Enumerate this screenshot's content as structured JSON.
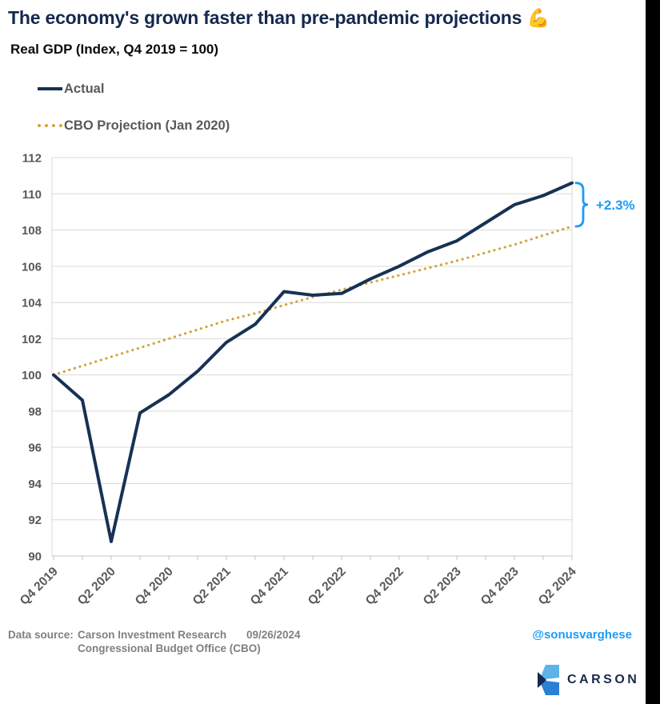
{
  "title": {
    "text": "The economy's grown faster than pre-pandemic projections",
    "emoji": "💪"
  },
  "subtitle": "Real GDP (Index, Q4 2019 = 100)",
  "legend": [
    {
      "label": "Actual",
      "style": "solid",
      "color": "#163254"
    },
    {
      "label": "CBO Projection (Jan 2020)",
      "style": "dotted",
      "color": "#D2A43F"
    }
  ],
  "annotation": {
    "label": "+2.3%",
    "color": "#1E9BF5"
  },
  "chart_data": {
    "type": "line",
    "x": [
      "Q4 2019",
      "Q1 2020",
      "Q2 2020",
      "Q3 2020",
      "Q4 2020",
      "Q1 2021",
      "Q2 2021",
      "Q3 2021",
      "Q4 2021",
      "Q1 2022",
      "Q2 2022",
      "Q3 2022",
      "Q4 2022",
      "Q1 2023",
      "Q2 2023",
      "Q3 2023",
      "Q4 2023",
      "Q1 2024",
      "Q2 2024"
    ],
    "x_tick_labels": [
      "Q4 2019",
      "Q2 2020",
      "Q4 2020",
      "Q2 2021",
      "Q4 2021",
      "Q2 2022",
      "Q4 2022",
      "Q2 2023",
      "Q4 2023",
      "Q2 2024"
    ],
    "series": [
      {
        "name": "Actual",
        "style": "solid",
        "color": "#163254",
        "values": [
          100,
          98.6,
          90.8,
          97.9,
          98.9,
          100.2,
          101.8,
          102.8,
          104.6,
          104.4,
          104.5,
          105.3,
          106.0,
          106.8,
          107.4,
          108.4,
          109.4,
          109.9,
          110.6
        ]
      },
      {
        "name": "CBO Projection (Jan 2020)",
        "style": "dotted",
        "color": "#D2A43F",
        "values": [
          100,
          100.5,
          101.0,
          101.5,
          102.0,
          102.5,
          103.0,
          103.4,
          103.85,
          104.3,
          104.7,
          105.1,
          105.5,
          105.9,
          106.3,
          106.75,
          107.2,
          107.7,
          108.2
        ]
      }
    ],
    "title": "",
    "xlabel": "",
    "ylabel": "",
    "ylim": [
      90,
      112
    ],
    "ytick_step": 2,
    "grid": true,
    "legend_position": "top-left"
  },
  "footer": {
    "source_label": "Data source:",
    "source_line1": "Carson Investment Research",
    "date": "09/26/2024",
    "source_line2": "Congressional Budget Office (CBO)",
    "handle": "@sonusvarghese",
    "logo_text": "CARSON"
  },
  "colors": {
    "navy": "#15294E",
    "actual_line": "#163254",
    "cbo_line": "#D2A43F",
    "accent_blue": "#1E9BF5",
    "axis_text": "#595959",
    "grid": "#D9D9D9",
    "axis_line": "#C6C6C6",
    "footer_text": "#808080",
    "logo_light_blue": "#5FB2E8",
    "logo_mid_blue": "#2B7FD4",
    "logo_navy": "#16294C"
  }
}
